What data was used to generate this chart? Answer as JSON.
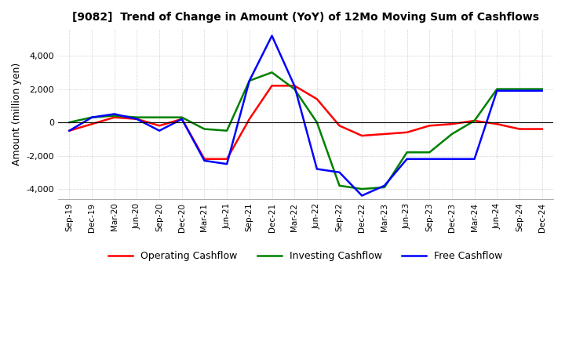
{
  "title": "[9082]  Trend of Change in Amount (YoY) of 12Mo Moving Sum of Cashflows",
  "ylabel": "Amount (million yen)",
  "ylim": [
    -4600,
    5600
  ],
  "yticks": [
    -4000,
    -2000,
    0,
    2000,
    4000
  ],
  "x_labels": [
    "Sep-19",
    "Dec-19",
    "Mar-20",
    "Jun-20",
    "Sep-20",
    "Dec-20",
    "Mar-21",
    "Jun-21",
    "Sep-21",
    "Dec-21",
    "Mar-22",
    "Jun-22",
    "Sep-22",
    "Dec-22",
    "Mar-23",
    "Jun-23",
    "Sep-23",
    "Dec-23",
    "Mar-24",
    "Jun-24",
    "Sep-24",
    "Dec-24"
  ],
  "operating": [
    -500,
    -100,
    300,
    200,
    -200,
    200,
    -2200,
    -2200,
    200,
    2200,
    2200,
    1400,
    -200,
    -800,
    -700,
    -600,
    -200,
    -100,
    100,
    -100,
    -400,
    -400
  ],
  "investing": [
    0,
    300,
    400,
    300,
    300,
    300,
    -400,
    -500,
    2500,
    3000,
    2000,
    0,
    -3800,
    -4000,
    -3900,
    -1800,
    -1800,
    -700,
    100,
    2000,
    2000,
    2000
  ],
  "free": [
    -500,
    300,
    500,
    200,
    -500,
    200,
    -2300,
    -2500,
    2500,
    5200,
    2200,
    -2800,
    -3000,
    -4400,
    -3800,
    -2200,
    -2200,
    -2200,
    -2200,
    1900,
    1900,
    1900
  ],
  "operating_color": "#ff0000",
  "investing_color": "#008000",
  "free_color": "#0000ff",
  "background_color": "#ffffff",
  "grid_color": "#b0b0b0"
}
